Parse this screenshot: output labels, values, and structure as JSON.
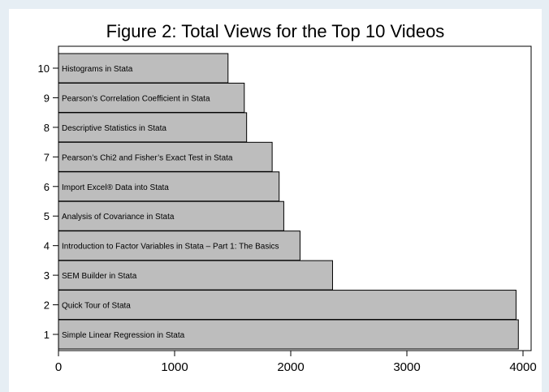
{
  "chart_data": {
    "type": "bar",
    "orientation": "horizontal",
    "title": "Figure 2: Total Views for the Top 10 Videos",
    "xlabel": "",
    "ylabel": "",
    "xlim": [
      0,
      4000
    ],
    "x_ticks": [
      "0",
      "1000",
      "2000",
      "3000",
      "4000"
    ],
    "grid": false,
    "categories": [
      "1",
      "2",
      "3",
      "4",
      "5",
      "6",
      "7",
      "8",
      "9",
      "10"
    ],
    "values": [
      3960,
      3940,
      2360,
      2080,
      1940,
      1900,
      1840,
      1620,
      1600,
      1460
    ],
    "bar_labels": [
      "Simple Linear Regression in Stata",
      "Quick Tour of Stata",
      "SEM Builder in Stata",
      "Introduction to Factor Variables in Stata – Part 1: The Basics",
      "Analysis of Covariance in Stata",
      "Import Excel® Data into Stata",
      "Pearson’s Chi2 and Fisher’s Exact Test in Stata",
      "Descriptive Statistics in Stata",
      "Pearson’s Correlation Coefficient in Stata",
      "Histograms in Stata"
    ],
    "colors": {
      "bar_fill": "#bdbdbd",
      "bar_edge": "#000000",
      "background": "#ffffff",
      "outer_background": "#e6eef4"
    }
  }
}
